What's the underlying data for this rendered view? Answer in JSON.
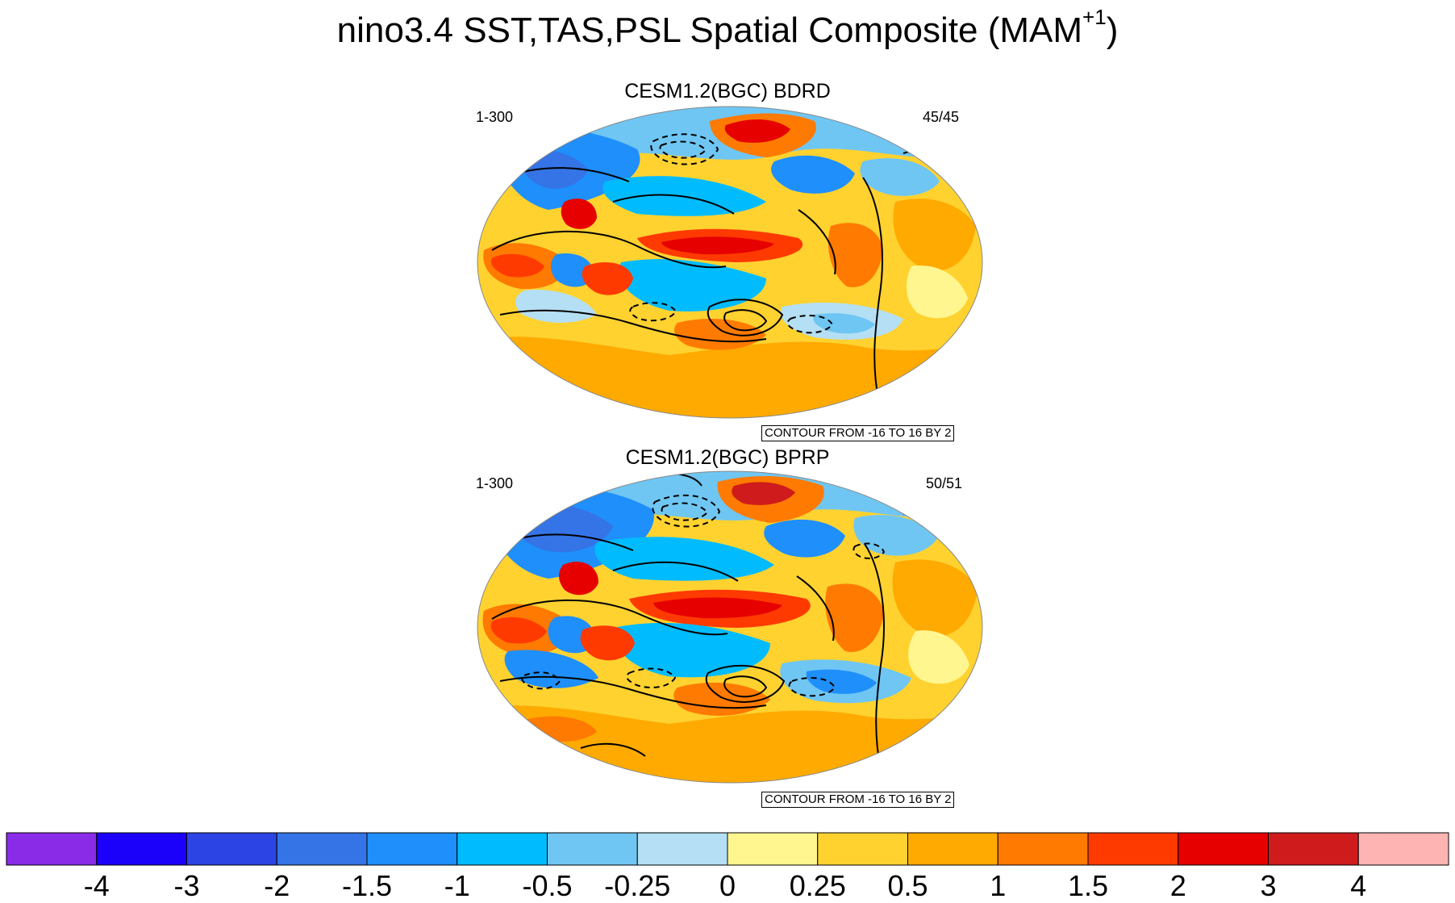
{
  "title": {
    "main": "nino3.4 SST,TAS,PSL Spatial Composite (MAM",
    "superscript": "+1",
    "close": ")"
  },
  "panels": [
    {
      "title": "CESM1.2(BGC) BDRD",
      "range_label": "1-300",
      "count_label": "45/45",
      "contour_label": "CONTOUR FROM -16 TO 16 BY 2"
    },
    {
      "title": "CESM1.2(BGC) BPRP",
      "range_label": "1-300",
      "count_label": "50/51",
      "contour_label": "CONTOUR FROM -16 TO 16 BY 2"
    }
  ],
  "colorbar": {
    "labels": [
      "-4",
      "-3",
      "-2",
      "-1.5",
      "-1",
      "-0.5",
      "-0.25",
      "0",
      "0.25",
      "0.5",
      "1",
      "1.5",
      "2",
      "3",
      "4"
    ],
    "colors": [
      "#8a2be8",
      "#1b00fa",
      "#2c44e3",
      "#3474e6",
      "#1f8ffb",
      "#00bcff",
      "#6fc6f3",
      "#b4dff4",
      "#fff690",
      "#ffd230",
      "#ffaa00",
      "#ff7a00",
      "#ff3a00",
      "#e60000",
      "#cf1b1b",
      "#ffb4b4"
    ]
  }
}
